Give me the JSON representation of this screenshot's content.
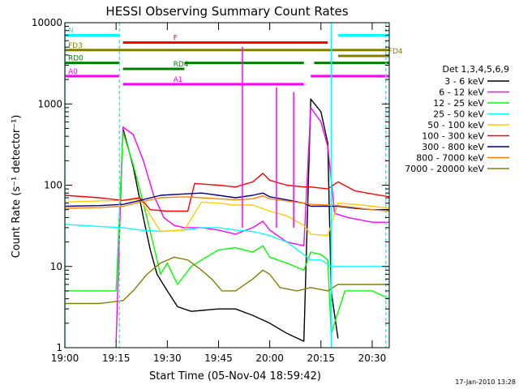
{
  "chart_data": {
    "type": "line",
    "title": "HESSI Observing Summary Count Rates",
    "xlabel": "Start Time (05-Nov-04 18:59:42)",
    "ylabel": "Count Rate (s⁻¹ detector⁻¹)",
    "ylog": true,
    "xlim": [
      "19:00",
      "20:35"
    ],
    "ylim": [
      1,
      10000
    ],
    "xticks": [
      "19:00",
      "19:15",
      "19:30",
      "19:45",
      "20:00",
      "20:15",
      "20:30"
    ],
    "yticks": [
      {
        "value": 1,
        "label": "1"
      },
      {
        "value": 10,
        "label": "10"
      },
      {
        "value": 100,
        "label": "100"
      },
      {
        "value": 1000,
        "label": "1000"
      },
      {
        "value": 10000,
        "label": "10000"
      }
    ],
    "legend": {
      "title": "Det 1,3,4,5,6,9",
      "position": "right"
    },
    "series": [
      {
        "name": "3 - 6 keV",
        "color": "#000000",
        "points": [
          [
            "19:17",
            500
          ],
          [
            "19:20",
            170
          ],
          [
            "19:23",
            40
          ],
          [
            "19:25",
            16
          ],
          [
            "19:27",
            8
          ],
          [
            "19:30",
            5
          ],
          [
            "19:33",
            3.2
          ],
          [
            "19:37",
            2.8
          ],
          [
            "19:45",
            3
          ],
          [
            "19:50",
            3
          ],
          [
            "19:55",
            2.5
          ],
          [
            "20:00",
            2
          ],
          [
            "20:05",
            1.5
          ],
          [
            "20:10",
            1.2
          ],
          [
            "20:12",
            1150
          ],
          [
            "20:15",
            800
          ],
          [
            "20:17",
            330
          ],
          [
            "20:18",
            5
          ],
          [
            "20:20",
            1.3
          ]
        ]
      },
      {
        "name": "6 - 12 keV",
        "color": "#ff00ff",
        "points": [
          [
            "19:15",
            1.2
          ],
          [
            "19:17",
            520
          ],
          [
            "19:20",
            420
          ],
          [
            "19:23",
            200
          ],
          [
            "19:26",
            75
          ],
          [
            "19:29",
            40
          ],
          [
            "19:32",
            32
          ],
          [
            "19:35",
            30
          ],
          [
            "19:40",
            30
          ],
          [
            "19:45",
            28
          ],
          [
            "19:50",
            25
          ],
          [
            "19:55",
            30
          ],
          [
            "19:58",
            36
          ],
          [
            "20:00",
            28
          ],
          [
            "20:05",
            20
          ],
          [
            "20:10",
            18
          ],
          [
            "20:12",
            900
          ],
          [
            "20:15",
            600
          ],
          [
            "20:17",
            300
          ],
          [
            "20:19",
            45
          ],
          [
            "20:23",
            40
          ],
          [
            "20:30",
            35
          ],
          [
            "20:35",
            35
          ]
        ]
      },
      {
        "name": "12 - 25 keV",
        "color": "#00ff00",
        "points": [
          [
            "19:00",
            5
          ],
          [
            "19:15",
            5
          ],
          [
            "19:17",
            450
          ],
          [
            "19:20",
            180
          ],
          [
            "19:23",
            60
          ],
          [
            "19:26",
            18
          ],
          [
            "19:28",
            8
          ],
          [
            "19:30",
            11
          ],
          [
            "19:33",
            6
          ],
          [
            "19:37",
            10
          ],
          [
            "19:40",
            12
          ],
          [
            "19:45",
            16
          ],
          [
            "19:50",
            17
          ],
          [
            "19:55",
            15
          ],
          [
            "19:58",
            18
          ],
          [
            "20:00",
            13
          ],
          [
            "20:05",
            11
          ],
          [
            "20:10",
            9
          ],
          [
            "20:12",
            15
          ],
          [
            "20:15",
            14
          ],
          [
            "20:17",
            12
          ],
          [
            "20:18",
            1.5
          ],
          [
            "20:22",
            5
          ],
          [
            "20:30",
            5
          ],
          [
            "20:35",
            4
          ]
        ]
      },
      {
        "name": "25 - 50 keV",
        "color": "#00ffff",
        "points": [
          [
            "19:00",
            33
          ],
          [
            "19:10",
            31
          ],
          [
            "19:17",
            30
          ],
          [
            "19:22",
            28
          ],
          [
            "19:28",
            27
          ],
          [
            "19:35",
            28
          ],
          [
            "19:40",
            30
          ],
          [
            "19:45",
            30
          ],
          [
            "19:50",
            28
          ],
          [
            "19:55",
            27
          ],
          [
            "20:00",
            24
          ],
          [
            "20:05",
            20
          ],
          [
            "20:10",
            14
          ],
          [
            "20:12",
            12
          ],
          [
            "20:15",
            12
          ],
          [
            "20:18",
            10
          ],
          [
            "20:22",
            10
          ],
          [
            "20:30",
            10
          ],
          [
            "20:35",
            10
          ]
        ]
      },
      {
        "name": "50 - 100 keV",
        "color": "#ffcc00",
        "points": [
          [
            "19:00",
            62
          ],
          [
            "19:10",
            64
          ],
          [
            "19:17",
            65
          ],
          [
            "19:22",
            68
          ],
          [
            "19:28",
            27
          ],
          [
            "19:35",
            28
          ],
          [
            "19:40",
            62
          ],
          [
            "19:45",
            60
          ],
          [
            "19:50",
            57
          ],
          [
            "19:55",
            57
          ],
          [
            "20:00",
            48
          ],
          [
            "20:05",
            42
          ],
          [
            "20:10",
            32
          ],
          [
            "20:12",
            25
          ],
          [
            "20:17",
            24
          ],
          [
            "20:20",
            60
          ],
          [
            "20:25",
            58
          ],
          [
            "20:30",
            55
          ],
          [
            "20:35",
            52
          ]
        ]
      },
      {
        "name": "100 - 300 keV",
        "color": "#ff0000",
        "points": [
          [
            "19:00",
            75
          ],
          [
            "19:10",
            70
          ],
          [
            "19:17",
            65
          ],
          [
            "19:22",
            70
          ],
          [
            "19:25",
            50
          ],
          [
            "19:30",
            48
          ],
          [
            "19:36",
            48
          ],
          [
            "19:38",
            105
          ],
          [
            "19:45",
            100
          ],
          [
            "19:50",
            95
          ],
          [
            "19:55",
            110
          ],
          [
            "19:58",
            140
          ],
          [
            "20:00",
            115
          ],
          [
            "20:05",
            100
          ],
          [
            "20:10",
            95
          ],
          [
            "20:12",
            95
          ],
          [
            "20:17",
            90
          ],
          [
            "20:20",
            110
          ],
          [
            "20:25",
            85
          ],
          [
            "20:30",
            78
          ],
          [
            "20:35",
            72
          ]
        ]
      },
      {
        "name": "300 - 800 keV",
        "color": "#000080",
        "points": [
          [
            "19:00",
            55
          ],
          [
            "19:10",
            56
          ],
          [
            "19:17",
            58
          ],
          [
            "19:22",
            65
          ],
          [
            "19:28",
            75
          ],
          [
            "19:35",
            78
          ],
          [
            "19:40",
            80
          ],
          [
            "19:45",
            75
          ],
          [
            "19:50",
            70
          ],
          [
            "19:55",
            75
          ],
          [
            "19:58",
            80
          ],
          [
            "20:00",
            72
          ],
          [
            "20:05",
            66
          ],
          [
            "20:10",
            60
          ],
          [
            "20:12",
            55
          ],
          [
            "20:17",
            55
          ],
          [
            "20:20",
            55
          ],
          [
            "20:25",
            52
          ],
          [
            "20:30",
            50
          ],
          [
            "20:35",
            50
          ]
        ]
      },
      {
        "name": "800 - 7000 keV",
        "color": "#ff8000",
        "points": [
          [
            "19:00",
            52
          ],
          [
            "19:10",
            53
          ],
          [
            "19:17",
            55
          ],
          [
            "19:22",
            62
          ],
          [
            "19:28",
            70
          ],
          [
            "19:35",
            72
          ],
          [
            "19:40",
            70
          ],
          [
            "19:45",
            68
          ],
          [
            "19:50",
            66
          ],
          [
            "19:55",
            68
          ],
          [
            "19:58",
            74
          ],
          [
            "20:00",
            68
          ],
          [
            "20:05",
            64
          ],
          [
            "20:10",
            60
          ],
          [
            "20:12",
            58
          ],
          [
            "20:17",
            57
          ],
          [
            "20:20",
            56
          ],
          [
            "20:25",
            53
          ],
          [
            "20:30",
            50
          ],
          [
            "20:35",
            48
          ]
        ]
      },
      {
        "name": "7000 - 20000 keV",
        "color": "#808000",
        "points": [
          [
            "19:00",
            3.5
          ],
          [
            "19:10",
            3.5
          ],
          [
            "19:17",
            3.8
          ],
          [
            "19:20",
            5
          ],
          [
            "19:24",
            8
          ],
          [
            "19:28",
            11
          ],
          [
            "19:32",
            13
          ],
          [
            "19:36",
            12
          ],
          [
            "19:40",
            9
          ],
          [
            "19:43",
            7
          ],
          [
            "19:46",
            5
          ],
          [
            "19:50",
            5
          ],
          [
            "19:55",
            7
          ],
          [
            "19:58",
            9
          ],
          [
            "20:00",
            8
          ],
          [
            "20:03",
            5.5
          ],
          [
            "20:08",
            5
          ],
          [
            "20:12",
            5.5
          ],
          [
            "20:17",
            5
          ],
          [
            "20:20",
            6
          ],
          [
            "20:30",
            6
          ],
          [
            "20:35",
            6
          ]
        ]
      }
    ],
    "state_bars": [
      {
        "label": "N",
        "color": "#00ffff",
        "value": 7000,
        "segments": [
          [
            "19:00",
            "19:16"
          ],
          [
            "20:20",
            "20:35"
          ]
        ]
      },
      {
        "label": "F",
        "color": "#ff0000",
        "value": 5700,
        "segments": [
          [
            "19:17",
            "20:17"
          ]
        ]
      },
      {
        "label": "FD3",
        "color": "#808000",
        "value": 4600,
        "segments": [
          [
            "19:00",
            "20:35"
          ]
        ]
      },
      {
        "label": "FD4",
        "color": "#808000",
        "value": 3900,
        "segments": [
          [
            "20:20",
            "20:35"
          ]
        ]
      },
      {
        "label": "RD0",
        "color": "#008000",
        "value": 3200,
        "segments": [
          [
            "19:00",
            "19:16"
          ],
          [
            "19:35",
            "20:10"
          ],
          [
            "20:13",
            "20:35"
          ]
        ]
      },
      {
        "label": "RD4",
        "color": "#008000",
        "value": 2700,
        "segments": [
          [
            "19:17",
            "19:35"
          ]
        ]
      },
      {
        "label": "A0",
        "color": "#ff00ff",
        "value": 2200,
        "segments": [
          [
            "19:00",
            "19:16"
          ],
          [
            "20:12",
            "20:35"
          ]
        ]
      },
      {
        "label": "A1",
        "color": "#ff00ff",
        "value": 1750,
        "segments": [
          [
            "19:17",
            "20:10"
          ]
        ]
      }
    ],
    "vlines": [
      {
        "time": "19:00",
        "color": "#00ffff",
        "style": "solid"
      },
      {
        "time": "19:16",
        "color": "#00ffff",
        "style": "dashed"
      },
      {
        "time": "20:18",
        "color": "#00ffff",
        "style": "solid"
      },
      {
        "time": "20:34",
        "color": "#00ffff",
        "style": "dashed"
      }
    ],
    "spikes": [
      {
        "time": "19:52",
        "peak": 5000,
        "color": "#ff00ff"
      },
      {
        "time": "20:02",
        "peak": 1600,
        "color": "#ff00ff"
      },
      {
        "time": "20:07",
        "peak": 1400,
        "color": "#ff00ff"
      }
    ]
  },
  "footer": {
    "timestamp": "17-Jan-2010 13:28"
  }
}
